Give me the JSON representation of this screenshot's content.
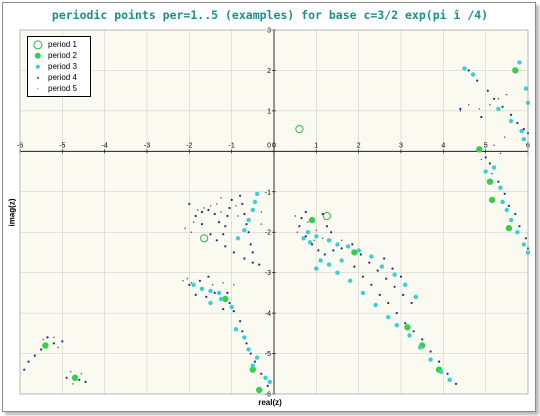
{
  "chart_data": {
    "type": "scatter",
    "title": "periodic points per=1..5 (examples) for base c=3/2 exp(pi î /4)",
    "xlabel": "real(z)",
    "ylabel": "imag(z)",
    "xlim": [
      -6,
      6
    ],
    "ylim": [
      -6,
      3
    ],
    "xticks": [
      -6,
      -5,
      -4,
      -3,
      -2,
      -1,
      0,
      1,
      2,
      3,
      4,
      5,
      6
    ],
    "yticks": [
      -6,
      -5,
      -4,
      -3,
      -2,
      -1,
      0,
      1,
      2,
      3
    ],
    "grid": true,
    "legend_position": "top-left",
    "series": [
      {
        "name": "period 1",
        "marker": "hollow-circle",
        "color": "#2db34a",
        "points": [
          [
            0.6,
            0.55
          ],
          [
            -1.65,
            -2.15
          ],
          [
            1.25,
            -1.6
          ]
        ]
      },
      {
        "name": "period 2",
        "marker": "filled-circle",
        "color": "#35d04a",
        "points": [
          [
            -5.4,
            -4.8
          ],
          [
            -4.7,
            -5.6
          ],
          [
            0.9,
            -1.7
          ],
          [
            1.9,
            -2.5
          ],
          [
            4.85,
            0.05
          ],
          [
            5.7,
            2.0
          ],
          [
            5.15,
            -1.2
          ],
          [
            5.55,
            -1.9
          ],
          [
            5.1,
            -0.75
          ],
          [
            -1.15,
            -3.65
          ],
          [
            -0.5,
            -5.4
          ],
          [
            -0.35,
            -5.9
          ],
          [
            3.5,
            -4.8
          ],
          [
            3.9,
            -5.4
          ],
          [
            3.15,
            -4.35
          ]
        ]
      },
      {
        "name": "period 3",
        "marker": "filled-circle",
        "color": "#35d0d8",
        "points": [
          [
            -1.7,
            -3.4
          ],
          [
            -1.5,
            -3.45
          ],
          [
            -1.9,
            -3.3
          ],
          [
            -1.3,
            -3.5
          ],
          [
            -1.5,
            -3.75
          ],
          [
            -1.0,
            -3.85
          ],
          [
            -1.25,
            -3.65
          ],
          [
            -0.9,
            -4.4
          ],
          [
            -0.7,
            -4.6
          ],
          [
            -0.4,
            -5.1
          ],
          [
            -0.5,
            -5.3
          ],
          [
            -0.2,
            -5.6
          ],
          [
            -0.1,
            -5.7
          ],
          [
            -0.6,
            -4.9
          ],
          [
            0.8,
            -2.0
          ],
          [
            1.0,
            -2.1
          ],
          [
            1.3,
            -2.2
          ],
          [
            1.5,
            -2.3
          ],
          [
            1.75,
            -2.35
          ],
          [
            2.0,
            -2.45
          ],
          [
            1.6,
            -2.7
          ],
          [
            1.3,
            -2.8
          ],
          [
            1.1,
            -2.7
          ],
          [
            1.0,
            -2.9
          ],
          [
            1.5,
            -3.0
          ],
          [
            1.8,
            -3.2
          ],
          [
            2.1,
            -3.5
          ],
          [
            2.4,
            -3.8
          ],
          [
            2.7,
            -4.1
          ],
          [
            2.9,
            -4.3
          ],
          [
            3.2,
            -4.55
          ],
          [
            3.45,
            -4.85
          ],
          [
            3.7,
            -5.15
          ],
          [
            3.95,
            -5.45
          ],
          [
            4.15,
            -5.65
          ],
          [
            2.3,
            -2.6
          ],
          [
            2.55,
            -2.85
          ],
          [
            2.85,
            -3.05
          ],
          [
            3.1,
            -3.3
          ],
          [
            3.35,
            -3.6
          ],
          [
            0.85,
            -2.25
          ],
          [
            0.7,
            -2.15
          ],
          [
            4.5,
            2.05
          ],
          [
            4.7,
            1.9
          ],
          [
            5.8,
            2.2
          ],
          [
            5.95,
            1.55
          ],
          [
            6.0,
            1.2
          ],
          [
            5.3,
            1.05
          ],
          [
            5.6,
            0.75
          ],
          [
            5.85,
            0.5
          ],
          [
            5.9,
            0.3
          ],
          [
            5.0,
            -0.5
          ],
          [
            5.2,
            -0.4
          ],
          [
            5.35,
            -0.9
          ],
          [
            5.5,
            -1.45
          ],
          [
            5.6,
            -1.7
          ],
          [
            5.75,
            -2.0
          ],
          [
            5.9,
            -2.3
          ],
          [
            6.0,
            -2.5
          ],
          [
            5.4,
            -1.25
          ],
          [
            -0.4,
            -1.05
          ],
          [
            -0.45,
            -1.25
          ],
          [
            -0.5,
            -1.45
          ],
          [
            -0.6,
            -1.7
          ],
          [
            -0.7,
            -1.95
          ],
          [
            -0.85,
            -2.15
          ]
        ]
      },
      {
        "name": "period 4",
        "marker": "small-dot",
        "color": "#1f2b8f",
        "points": [
          [
            -2.0,
            -1.3
          ],
          [
            -1.85,
            -1.6
          ],
          [
            -1.7,
            -1.8
          ],
          [
            -1.5,
            -2.05
          ],
          [
            -1.35,
            -2.2
          ],
          [
            -1.15,
            -2.35
          ],
          [
            -0.95,
            -2.5
          ],
          [
            -0.7,
            -2.65
          ],
          [
            -0.5,
            -2.75
          ],
          [
            -0.35,
            -2.8
          ],
          [
            -1.0,
            -1.2
          ],
          [
            -1.05,
            -1.4
          ],
          [
            -1.1,
            -1.6
          ],
          [
            -1.15,
            -1.85
          ],
          [
            -1.2,
            -2.05
          ],
          [
            -1.3,
            -1.75
          ],
          [
            -1.4,
            -1.55
          ],
          [
            -1.55,
            -1.45
          ],
          [
            -1.7,
            -1.5
          ],
          [
            -0.8,
            -1.1
          ],
          [
            -0.75,
            -1.3
          ],
          [
            -0.7,
            -1.55
          ],
          [
            -0.65,
            -1.8
          ],
          [
            -0.6,
            -2.0
          ],
          [
            -0.55,
            -2.3
          ],
          [
            -0.5,
            -2.5
          ],
          [
            -2.0,
            -3.3
          ],
          [
            -1.85,
            -3.55
          ],
          [
            -1.6,
            -3.6
          ],
          [
            -1.4,
            -3.5
          ],
          [
            -1.75,
            -3.2
          ],
          [
            -1.55,
            -3.1
          ],
          [
            -1.1,
            -3.5
          ],
          [
            -1.05,
            -3.75
          ],
          [
            -0.95,
            -3.95
          ],
          [
            -1.2,
            -3.9
          ],
          [
            -0.8,
            -4.2
          ],
          [
            -0.75,
            -4.45
          ],
          [
            -0.65,
            -4.75
          ],
          [
            -0.55,
            -5.0
          ],
          [
            -0.45,
            -5.2
          ],
          [
            -0.3,
            -5.5
          ],
          [
            -0.15,
            -5.8
          ],
          [
            0.6,
            -1.85
          ],
          [
            0.75,
            -2.1
          ],
          [
            0.9,
            -2.3
          ],
          [
            1.05,
            -2.45
          ],
          [
            1.2,
            -2.55
          ],
          [
            1.4,
            -2.45
          ],
          [
            1.6,
            -2.4
          ],
          [
            1.85,
            -2.3
          ],
          [
            2.05,
            -2.55
          ],
          [
            2.25,
            -2.75
          ],
          [
            2.45,
            -2.95
          ],
          [
            2.65,
            -3.15
          ],
          [
            2.85,
            -3.35
          ],
          [
            3.05,
            -3.55
          ],
          [
            3.25,
            -3.75
          ],
          [
            1.9,
            -2.85
          ],
          [
            2.1,
            -3.1
          ],
          [
            2.3,
            -3.3
          ],
          [
            2.5,
            -3.55
          ],
          [
            2.7,
            -3.75
          ],
          [
            2.9,
            -4.0
          ],
          [
            3.1,
            -4.25
          ],
          [
            3.3,
            -4.45
          ],
          [
            3.5,
            -4.65
          ],
          [
            3.7,
            -4.95
          ],
          [
            3.9,
            -5.2
          ],
          [
            4.1,
            -5.5
          ],
          [
            4.3,
            -5.75
          ],
          [
            1.25,
            -1.85
          ],
          [
            1.35,
            -2.0
          ],
          [
            1.15,
            -1.55
          ],
          [
            0.75,
            -1.5
          ],
          [
            0.65,
            -1.65
          ],
          [
            2.6,
            -2.65
          ],
          [
            2.8,
            -2.9
          ],
          [
            3.0,
            -3.1
          ],
          [
            4.6,
            2.0
          ],
          [
            4.8,
            1.75
          ],
          [
            5.05,
            1.5
          ],
          [
            5.2,
            1.3
          ],
          [
            5.4,
            1.1
          ],
          [
            5.6,
            0.9
          ],
          [
            5.75,
            0.7
          ],
          [
            5.9,
            0.55
          ],
          [
            6.0,
            0.45
          ],
          [
            4.4,
            1.05
          ],
          [
            4.9,
            0.85
          ],
          [
            5.0,
            -0.15
          ],
          [
            5.1,
            -0.3
          ],
          [
            5.3,
            -0.75
          ],
          [
            5.45,
            -1.05
          ],
          [
            5.55,
            -1.35
          ],
          [
            5.7,
            -1.55
          ],
          [
            5.8,
            -1.85
          ],
          [
            5.95,
            -2.15
          ],
          [
            6.0,
            -2.4
          ],
          [
            -5.5,
            -4.9
          ],
          [
            -5.8,
            -5.2
          ],
          [
            -5.9,
            -5.4
          ],
          [
            -5.2,
            -4.75
          ],
          [
            -5.0,
            -4.7
          ],
          [
            -4.9,
            -5.6
          ],
          [
            -4.6,
            -5.65
          ],
          [
            -4.45,
            -5.7
          ],
          [
            -5.35,
            -4.6
          ],
          [
            -5.65,
            -5.05
          ]
        ]
      },
      {
        "name": "period 5",
        "marker": "tiny-dot",
        "color": "#3a3a4a",
        "points": [
          [
            -1.8,
            -1.45
          ],
          [
            -1.65,
            -1.4
          ],
          [
            -1.5,
            -1.35
          ],
          [
            -1.35,
            -1.3
          ],
          [
            -1.9,
            -1.75
          ],
          [
            -2.1,
            -1.9
          ],
          [
            -1.95,
            -2.0
          ],
          [
            -1.25,
            -1.5
          ],
          [
            -1.25,
            -1.15
          ],
          [
            -0.9,
            -1.35
          ],
          [
            -0.85,
            -1.6
          ],
          [
            -0.3,
            -1.5
          ],
          [
            -0.3,
            -1.8
          ],
          [
            -2.15,
            -3.2
          ],
          [
            -2.05,
            -3.15
          ],
          [
            -1.95,
            -3.25
          ],
          [
            -1.45,
            -3.3
          ],
          [
            -1.2,
            -3.25
          ],
          [
            -0.95,
            -3.3
          ],
          [
            0.5,
            -1.6
          ],
          [
            0.55,
            -2.0
          ],
          [
            0.8,
            -1.75
          ],
          [
            1.0,
            -1.95
          ],
          [
            1.15,
            -2.15
          ],
          [
            0.95,
            -2.2
          ],
          [
            1.6,
            -2.2
          ],
          [
            4.4,
            1.0
          ],
          [
            4.6,
            1.15
          ],
          [
            4.85,
            1.05
          ],
          [
            5.1,
            1.15
          ],
          [
            5.3,
            1.3
          ],
          [
            5.5,
            1.4
          ],
          [
            5.2,
            0.15
          ],
          [
            5.35,
            -0.05
          ],
          [
            5.15,
            -0.55
          ],
          [
            4.9,
            -0.2
          ],
          [
            5.45,
            0.35
          ],
          [
            -5.45,
            -4.65
          ],
          [
            -5.2,
            -4.6
          ],
          [
            -5.1,
            -4.85
          ],
          [
            -4.8,
            -5.45
          ],
          [
            -4.75,
            -5.75
          ],
          [
            -4.55,
            -5.5
          ]
        ]
      }
    ]
  }
}
